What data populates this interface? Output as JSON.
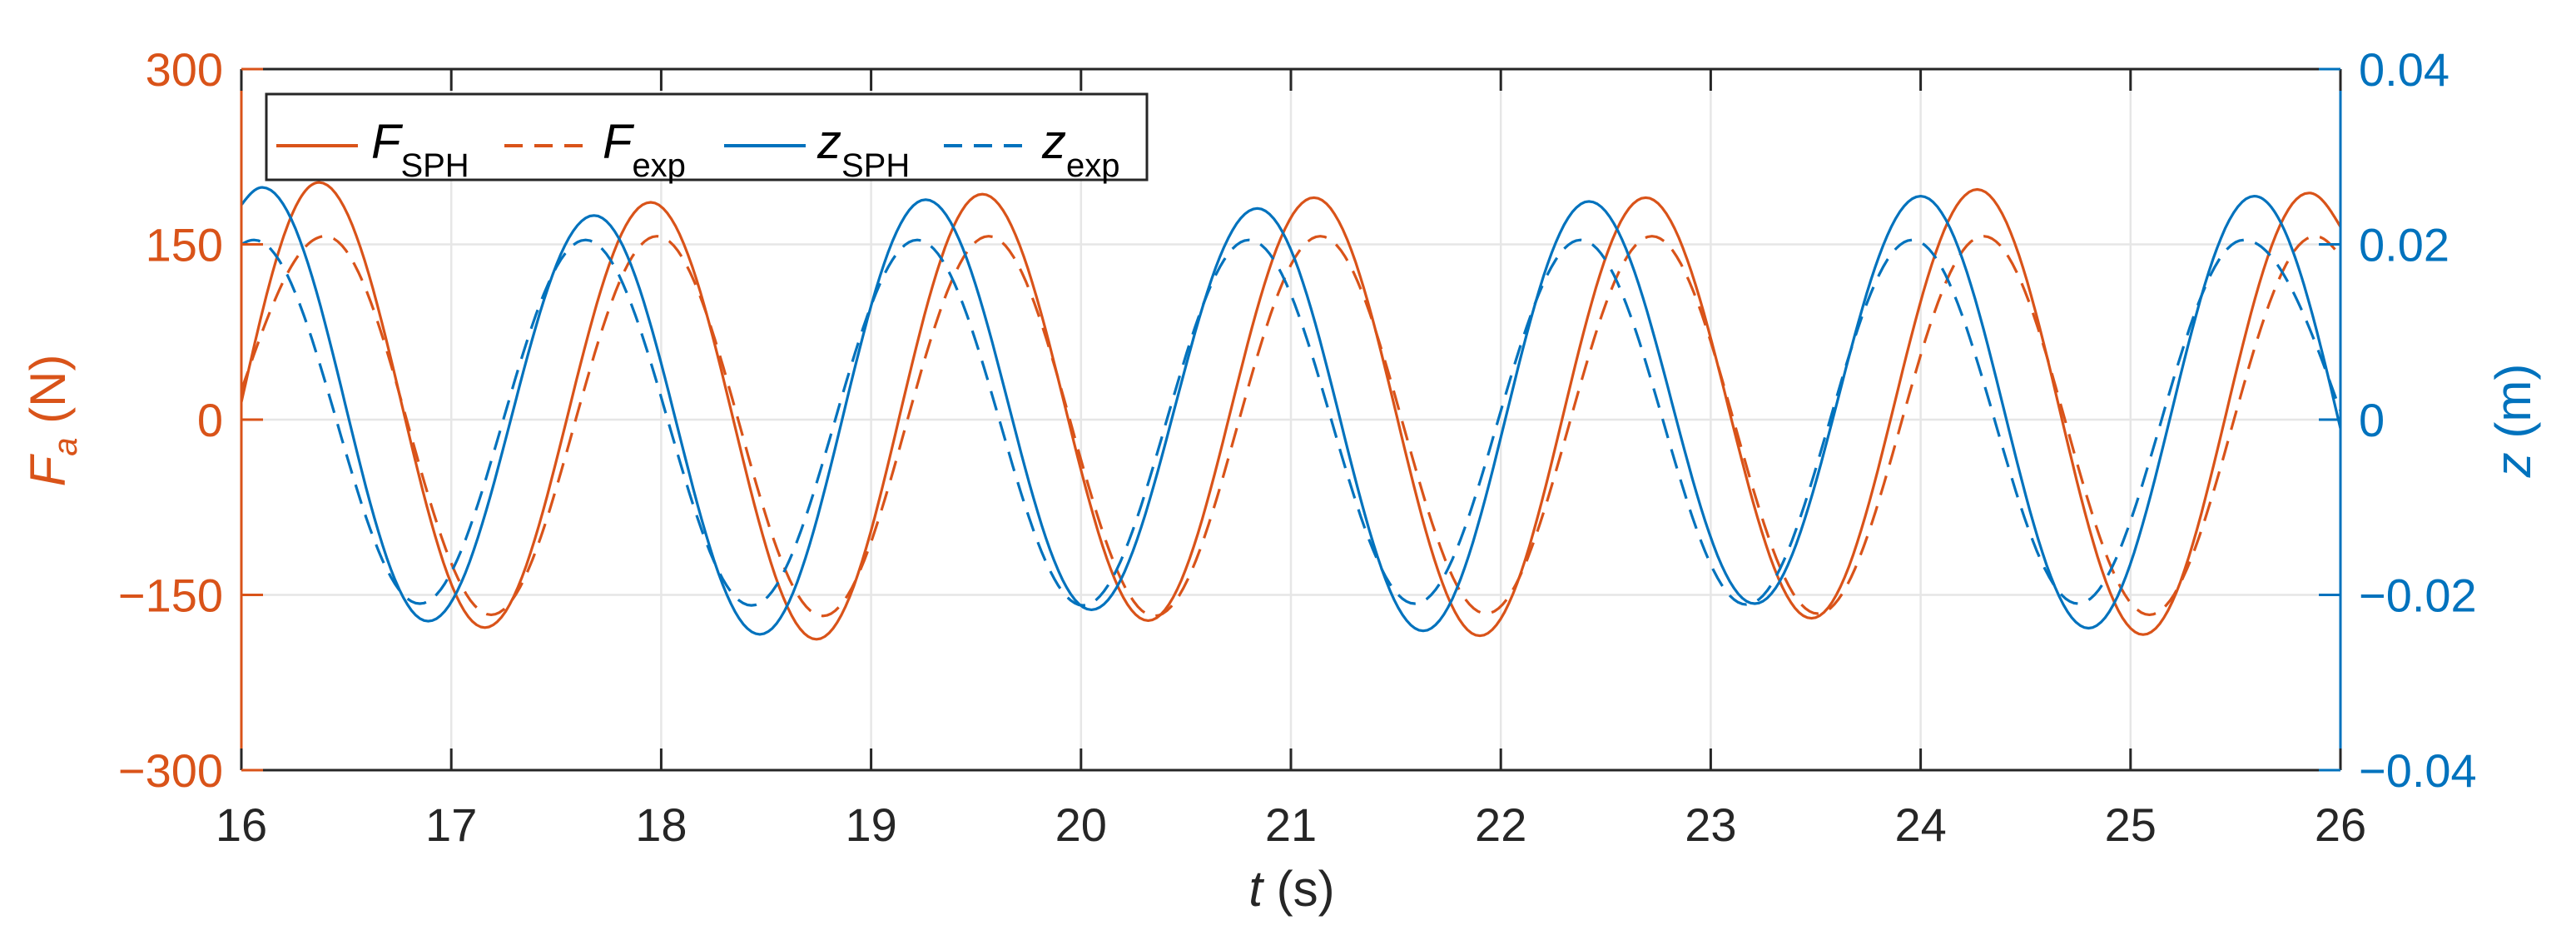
{
  "figure": {
    "xlabel_var": "t",
    "xlabel_unit": " (s)",
    "ylabel_left_var": "F",
    "ylabel_left_sub": "a",
    "ylabel_left_unit": " (N)",
    "ylabel_right_var": "z",
    "ylabel_right_unit": " (m)",
    "colors": {
      "force": "#D95319",
      "displacement": "#0072BD",
      "grid": "#E6E6E6",
      "axes": "#262626"
    }
  },
  "legend": {
    "items": [
      {
        "var": "F",
        "sub": "SPH",
        "style": "solid",
        "color": "#D95319"
      },
      {
        "var": "F",
        "sub": "exp",
        "style": "dashed",
        "color": "#D95319"
      },
      {
        "var": "z",
        "sub": "SPH",
        "style": "solid",
        "color": "#0072BD"
      },
      {
        "var": "z",
        "sub": "exp",
        "style": "dashed",
        "color": "#0072BD"
      }
    ]
  },
  "chart_data": {
    "type": "line",
    "title": "",
    "xlabel": "t (s)",
    "ylabel": "F_a (N)",
    "ylabel_right": "z (m)",
    "xlim": [
      16,
      26
    ],
    "ylim": [
      -300,
      300
    ],
    "ylim_right": [
      -0.04,
      0.04
    ],
    "xticks": [
      "16",
      "17",
      "18",
      "19",
      "20",
      "21",
      "22",
      "23",
      "24",
      "25",
      "26"
    ],
    "yticks_left": [
      "300",
      "150",
      "0",
      "-150",
      "-300"
    ],
    "yticks_left_values": [
      300,
      150,
      0,
      -150,
      -300
    ],
    "yticks_right": [
      "0.04",
      "0.02",
      "0",
      "-0.02",
      "-0.04"
    ],
    "yticks_right_values": [
      0.04,
      0.02,
      0,
      -0.02,
      -0.04
    ],
    "grid": true,
    "legend_position": "top-left",
    "series": [
      {
        "name": "F_SPH",
        "axis": "left",
        "style": "solid",
        "color": "#D95319",
        "start": [
          16.0,
          15
        ],
        "extrema_t": [
          16.37,
          17.16,
          17.95,
          18.74,
          19.53,
          20.32,
          21.11,
          21.9,
          22.69,
          23.48,
          24.27,
          25.06,
          25.85
        ],
        "extrema_v": [
          203,
          -178,
          186,
          -188,
          193,
          -172,
          190,
          -185,
          190,
          -170,
          197,
          -184,
          194
        ],
        "end": [
          26.0,
          165
        ]
      },
      {
        "name": "F_exp",
        "axis": "left",
        "style": "dashed",
        "color": "#D95319",
        "start": [
          16.0,
          25
        ],
        "extrema_t": [
          16.4,
          17.19,
          17.98,
          18.77,
          19.56,
          20.35,
          21.14,
          21.93,
          22.72,
          23.51,
          24.3,
          25.09,
          25.88
        ],
        "extrema_v": [
          157,
          -167,
          157,
          -168,
          157,
          -168,
          157,
          -166,
          157,
          -166,
          157,
          -167,
          157
        ],
        "end": [
          26.0,
          140
        ]
      },
      {
        "name": "z_SPH",
        "axis": "right",
        "style": "solid",
        "color": "#0072BD",
        "start": [
          16.0,
          0.0245
        ],
        "extrema_t": [
          16.1,
          16.89,
          17.68,
          18.47,
          19.26,
          20.05,
          20.84,
          21.63,
          22.42,
          23.21,
          24.0,
          24.8,
          25.59
        ],
        "extrema_v": [
          0.0265,
          -0.023,
          0.0233,
          -0.0245,
          0.0251,
          -0.0217,
          0.0241,
          -0.0241,
          0.0249,
          -0.021,
          0.0255,
          -0.0238,
          0.0255
        ],
        "end": [
          26.0,
          -0.001
        ]
      },
      {
        "name": "z_exp",
        "axis": "right",
        "style": "dashed",
        "color": "#0072BD",
        "start": [
          16.0,
          0.02
        ],
        "extrema_t": [
          16.06,
          16.85,
          17.64,
          18.43,
          19.22,
          20.01,
          20.8,
          21.59,
          22.38,
          23.17,
          23.96,
          24.75,
          25.54
        ],
        "extrema_v": [
          0.0205,
          -0.021,
          0.0205,
          -0.0212,
          0.0205,
          -0.0212,
          0.0205,
          -0.021,
          0.0205,
          -0.0211,
          0.0205,
          -0.021,
          0.0205
        ],
        "end": [
          26.0,
          0.001
        ]
      }
    ]
  }
}
